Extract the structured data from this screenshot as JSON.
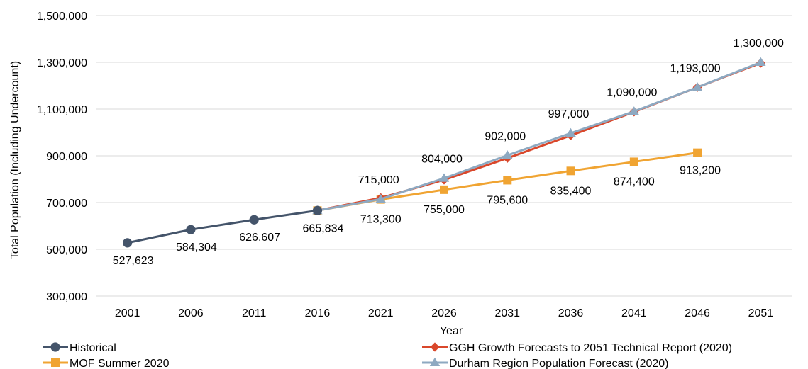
{
  "chart_data": {
    "type": "line",
    "xlabel": "Year",
    "ylabel": "Total Population (Including Undercount)",
    "ylim": [
      300000,
      1500000
    ],
    "yticks": [
      "300,000",
      "500,000",
      "700,000",
      "900,000",
      "1,100,000",
      "1,300,000",
      "1,500,000"
    ],
    "ytick_values": [
      300000,
      500000,
      700000,
      900000,
      1100000,
      1300000,
      1500000
    ],
    "categories": [
      "2001",
      "2006",
      "2011",
      "2016",
      "2021",
      "2026",
      "2031",
      "2036",
      "2041",
      "2046",
      "2051"
    ],
    "grid": "horizontal",
    "legend_position": "bottom",
    "series": [
      {
        "name": "Historical",
        "color": "#44546a",
        "marker": "circle",
        "values": [
          527623,
          584304,
          626607,
          665834,
          null,
          null,
          null,
          null,
          null,
          null,
          null
        ],
        "labels": [
          "527,623",
          "584,304",
          "626,607",
          "665,834",
          null,
          null,
          null,
          null,
          null,
          null,
          null
        ]
      },
      {
        "name": "GGH Growth Forecasts to 2051 Technical Report (2020)",
        "color": "#d9472b",
        "marker": "diamond",
        "values": [
          null,
          null,
          null,
          665834,
          720000,
          797000,
          890000,
          987000,
          1088000,
          1193000,
          1297000
        ],
        "labels": [
          null,
          null,
          null,
          null,
          null,
          null,
          null,
          null,
          null,
          null,
          null
        ]
      },
      {
        "name": "MOF Summer 2020",
        "color": "#f0a432",
        "marker": "square",
        "values": [
          null,
          null,
          null,
          665834,
          713300,
          755000,
          795600,
          835400,
          874400,
          913200,
          null
        ],
        "labels": [
          null,
          null,
          null,
          null,
          "713,300",
          "755,000",
          "795,600",
          "835,400",
          "874,400",
          "913,200",
          null
        ]
      },
      {
        "name": "Durham Region Population Forecast (2020)",
        "color": "#8ea9c1",
        "marker": "triangle",
        "values": [
          null,
          null,
          null,
          665834,
          715000,
          804000,
          902000,
          997000,
          1090000,
          1193000,
          1300000
        ],
        "labels": [
          null,
          null,
          null,
          null,
          "715,000",
          "804,000",
          "902,000",
          "997,000",
          "1,090,000",
          "1,193,000",
          "1,300,000"
        ]
      }
    ]
  }
}
